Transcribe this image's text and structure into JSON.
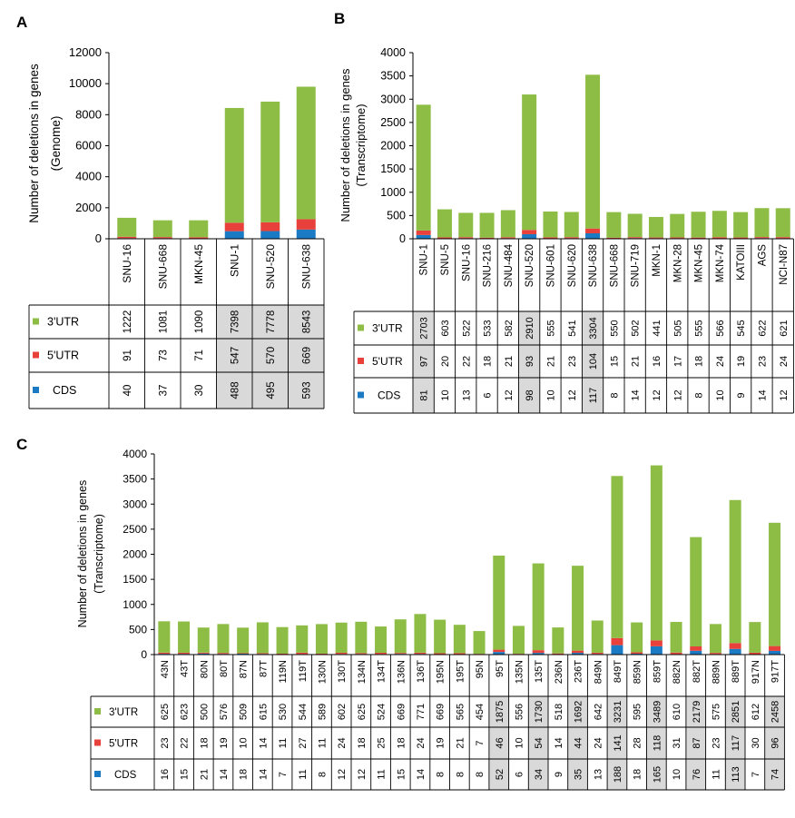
{
  "colors": {
    "cds": "#1a7ac4",
    "utr5": "#e8413b",
    "utr3": "#8dbd45",
    "highlight": "#d9d9d9",
    "grid": "#000000"
  },
  "chart_data": [
    {
      "panel": "A",
      "type": "bar",
      "stacked": true,
      "ylabel": "Number of deletions in genes",
      "ylabel2": "(Genome)",
      "ylim": [
        0,
        12000
      ],
      "yticks": [
        "0",
        "2000",
        "4000",
        "6000",
        "8000",
        "10000",
        "12000"
      ],
      "categories": [
        "SNU-16",
        "SNU-668",
        "MKN-45",
        "SNU-1",
        "SNU-520",
        "SNU-638"
      ],
      "highlight": [
        3,
        4,
        5
      ],
      "series": [
        {
          "name": "3'UTR",
          "values": [
            1222,
            1081,
            1090,
            7398,
            7778,
            8543
          ]
        },
        {
          "name": "5'UTR",
          "values": [
            91,
            73,
            71,
            547,
            570,
            669
          ]
        },
        {
          "name": "CDS",
          "values": [
            40,
            37,
            30,
            488,
            495,
            593
          ]
        }
      ]
    },
    {
      "panel": "B",
      "type": "bar",
      "stacked": true,
      "ylabel": "Number of deletions  in genes",
      "ylabel2": "(Transcriptome)",
      "ylim": [
        0,
        4000
      ],
      "yticks": [
        "0",
        "500",
        "1000",
        "1500",
        "2000",
        "2500",
        "3000",
        "3500",
        "4000"
      ],
      "categories": [
        "SNU-1",
        "SNU-5",
        "SNU-16",
        "SNU-216",
        "SNU-484",
        "SNU-520",
        "SNU-601",
        "SNU-620",
        "SNU-638",
        "SNU-668",
        "SNU-719",
        "MKN-1",
        "MKN-28",
        "MKN-45",
        "MKN-74",
        "KATOIII",
        "AGS",
        "NCI-N87"
      ],
      "highlight": [
        0,
        5,
        8
      ],
      "series": [
        {
          "name": "3'UTR",
          "values": [
            2703,
            603,
            522,
            533,
            582,
            2910,
            555,
            541,
            3304,
            550,
            502,
            441,
            505,
            555,
            566,
            545,
            622,
            621
          ]
        },
        {
          "name": "5'UTR",
          "values": [
            97,
            20,
            22,
            18,
            21,
            93,
            21,
            23,
            104,
            15,
            21,
            16,
            17,
            18,
            24,
            19,
            23,
            24
          ]
        },
        {
          "name": "CDS",
          "values": [
            81,
            10,
            13,
            6,
            12,
            98,
            10,
            12,
            117,
            8,
            14,
            12,
            12,
            8,
            10,
            9,
            14,
            12
          ]
        }
      ]
    },
    {
      "panel": "C",
      "type": "bar",
      "stacked": true,
      "ylabel": "Number of deletions  in genes",
      "ylabel2": "(Transcriptome)",
      "ylim": [
        0,
        4000
      ],
      "yticks": [
        "0",
        "500",
        "1000",
        "1500",
        "2000",
        "2500",
        "3000",
        "3500",
        "4000"
      ],
      "categories": [
        "43N",
        "43T",
        "80N",
        "80T",
        "87N",
        "87T",
        "119N",
        "119T",
        "130N",
        "130T",
        "134N",
        "134T",
        "136N",
        "136T",
        "195N",
        "195T",
        "95N",
        "95T",
        "135N",
        "135T",
        "236N",
        "236T",
        "849N",
        "849T",
        "859N",
        "859T",
        "882N",
        "882T",
        "889N",
        "889T",
        "917N",
        "917T"
      ],
      "highlight": [
        17,
        19,
        21,
        23,
        25,
        27,
        29,
        31
      ],
      "series": [
        {
          "name": "3'UTR",
          "values": [
            625,
            623,
            500,
            576,
            509,
            615,
            530,
            544,
            589,
            602,
            625,
            524,
            669,
            771,
            669,
            565,
            454,
            1875,
            556,
            1730,
            518,
            1692,
            642,
            3231,
            595,
            3489,
            610,
            2179,
            575,
            2851,
            612,
            2458
          ]
        },
        {
          "name": "5'UTR",
          "values": [
            23,
            22,
            18,
            19,
            10,
            14,
            11,
            27,
            11,
            24,
            18,
            25,
            18,
            24,
            19,
            21,
            7,
            46,
            10,
            54,
            14,
            44,
            24,
            141,
            28,
            118,
            31,
            87,
            23,
            117,
            30,
            96
          ]
        },
        {
          "name": "CDS",
          "values": [
            16,
            15,
            21,
            14,
            18,
            14,
            7,
            11,
            8,
            12,
            12,
            11,
            15,
            14,
            8,
            8,
            8,
            52,
            6,
            34,
            9,
            35,
            13,
            188,
            18,
            165,
            10,
            76,
            11,
            113,
            7,
            74
          ]
        }
      ]
    }
  ]
}
